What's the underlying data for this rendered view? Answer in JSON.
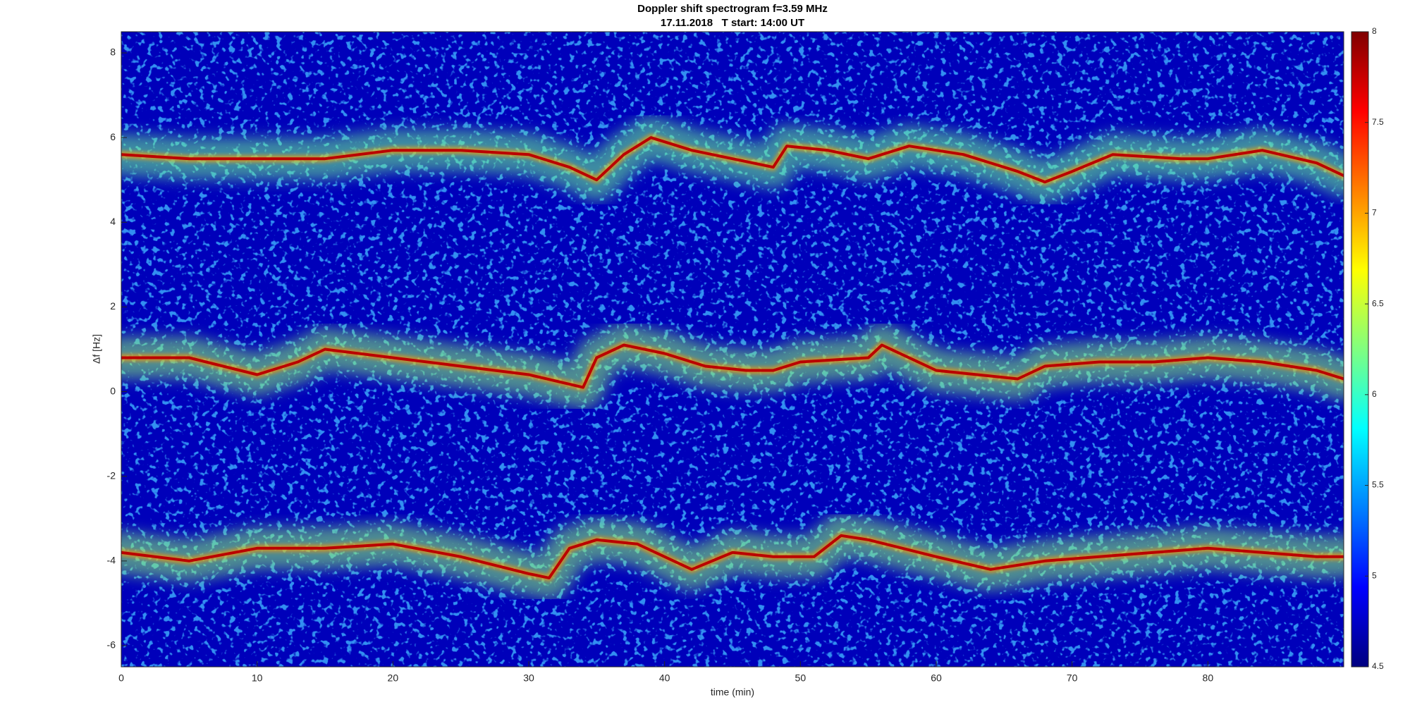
{
  "chart_data": {
    "type": "spectrogram",
    "title": "Doppler shift spectrogram f=3.59 MHz",
    "subtitle": "17.11.2018   T start: 14:00 UT",
    "xlabel": "time (min)",
    "ylabel": "Δf [Hz]",
    "xlim": [
      0,
      90
    ],
    "ylim": [
      -6.5,
      8.5
    ],
    "xticks": [
      0,
      10,
      20,
      30,
      40,
      50,
      60,
      70,
      80
    ],
    "yticks": [
      -6,
      -4,
      -2,
      0,
      2,
      4,
      6,
      8
    ],
    "colormap": "jet",
    "clim": [
      4.5,
      8
    ],
    "cticks": [
      4.5,
      5,
      5.5,
      6,
      6.5,
      7,
      7.5,
      8
    ],
    "background": 4.7,
    "ridges": [
      {
        "peak": 7.8,
        "halo": 6.2,
        "x": [
          0,
          5,
          10,
          15,
          20,
          25,
          30,
          33,
          35,
          37,
          39,
          42,
          45,
          48,
          49,
          52,
          55,
          58,
          62,
          66,
          68,
          70,
          73,
          78,
          80,
          84,
          88,
          90
        ],
        "values": [
          5.6,
          5.5,
          5.5,
          5.5,
          5.7,
          5.7,
          5.6,
          5.3,
          5.0,
          5.6,
          6.0,
          5.7,
          5.5,
          5.3,
          5.8,
          5.7,
          5.5,
          5.8,
          5.6,
          5.2,
          4.95,
          5.2,
          5.6,
          5.5,
          5.5,
          5.7,
          5.4,
          5.1
        ]
      },
      {
        "peak": 7.8,
        "halo": 6.3,
        "x": [
          0,
          5,
          10,
          13,
          15,
          20,
          25,
          30,
          34,
          35,
          37,
          40,
          43,
          46,
          48,
          50,
          55,
          56,
          60,
          63,
          66,
          68,
          72,
          76,
          80,
          84,
          88,
          90
        ],
        "values": [
          0.8,
          0.8,
          0.4,
          0.7,
          1.0,
          0.8,
          0.6,
          0.4,
          0.1,
          0.8,
          1.1,
          0.9,
          0.6,
          0.5,
          0.5,
          0.7,
          0.8,
          1.1,
          0.5,
          0.4,
          0.3,
          0.6,
          0.7,
          0.7,
          0.8,
          0.7,
          0.5,
          0.3
        ]
      },
      {
        "peak": 7.8,
        "halo": 6.3,
        "x": [
          0,
          5,
          10,
          15,
          20,
          25,
          30,
          31.5,
          33,
          35,
          38,
          42,
          45,
          48,
          51,
          53,
          55,
          60,
          64,
          68,
          72,
          76,
          80,
          84,
          88,
          90
        ],
        "values": [
          -3.8,
          -4.0,
          -3.7,
          -3.7,
          -3.6,
          -3.9,
          -4.3,
          -4.4,
          -3.7,
          -3.5,
          -3.6,
          -4.2,
          -3.8,
          -3.9,
          -3.9,
          -3.4,
          -3.5,
          -3.9,
          -4.2,
          -4.0,
          -3.9,
          -3.8,
          -3.7,
          -3.8,
          -3.9,
          -3.9
        ]
      }
    ]
  }
}
